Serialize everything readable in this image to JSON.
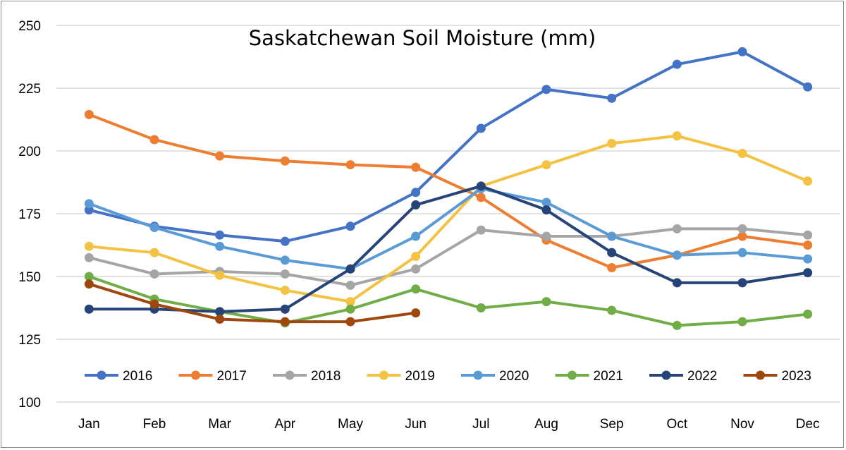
{
  "chart_data": {
    "type": "line",
    "title": "Saskatchewan Soil Moisture (mm)",
    "xlabel": "",
    "ylabel": "",
    "categories": [
      "Jan",
      "Feb",
      "Mar",
      "Apr",
      "May",
      "Jun",
      "Jul",
      "Aug",
      "Sep",
      "Oct",
      "Nov",
      "Dec"
    ],
    "ylim": [
      100,
      250
    ],
    "yticks": [
      100,
      125,
      150,
      175,
      200,
      225,
      250
    ],
    "grid": true,
    "legend_position": "bottom-inside",
    "series": [
      {
        "name": "2016",
        "color": "#4472C4",
        "values": [
          176.5,
          170.0,
          166.5,
          164.0,
          170.0,
          183.5,
          209.0,
          224.5,
          221.0,
          234.5,
          239.5,
          225.5
        ]
      },
      {
        "name": "2017",
        "color": "#ED7D31",
        "values": [
          214.5,
          204.5,
          198.0,
          196.0,
          194.5,
          193.5,
          181.5,
          164.5,
          153.5,
          158.5,
          166.0,
          162.5
        ]
      },
      {
        "name": "2018",
        "color": "#A5A5A5",
        "values": [
          157.5,
          151.0,
          152.0,
          151.0,
          146.5,
          153.0,
          168.5,
          166.0,
          166.0,
          169.0,
          169.0,
          166.5
        ]
      },
      {
        "name": "2019",
        "color": "#F4C242",
        "values": [
          162.0,
          159.5,
          150.5,
          144.5,
          140.0,
          158.0,
          186.0,
          194.5,
          203.0,
          206.0,
          199.0,
          188.0
        ]
      },
      {
        "name": "2020",
        "color": "#5B9BD5",
        "values": [
          179.0,
          169.5,
          162.0,
          156.5,
          153.0,
          166.0,
          185.0,
          179.5,
          166.0,
          158.5,
          159.5,
          157.0
        ]
      },
      {
        "name": "2021",
        "color": "#70AD47",
        "values": [
          150.0,
          141.0,
          136.0,
          131.5,
          137.0,
          145.0,
          137.5,
          140.0,
          136.5,
          130.5,
          132.0,
          135.0
        ]
      },
      {
        "name": "2022",
        "color": "#264478",
        "values": [
          137.0,
          137.0,
          136.0,
          137.0,
          153.0,
          178.5,
          186.0,
          176.5,
          159.5,
          147.5,
          147.5,
          151.5
        ]
      },
      {
        "name": "2023",
        "color": "#9E480E",
        "values": [
          147.0,
          139.0,
          133.0,
          132.0,
          132.0,
          135.5,
          null,
          null,
          null,
          null,
          null,
          null
        ]
      }
    ]
  }
}
